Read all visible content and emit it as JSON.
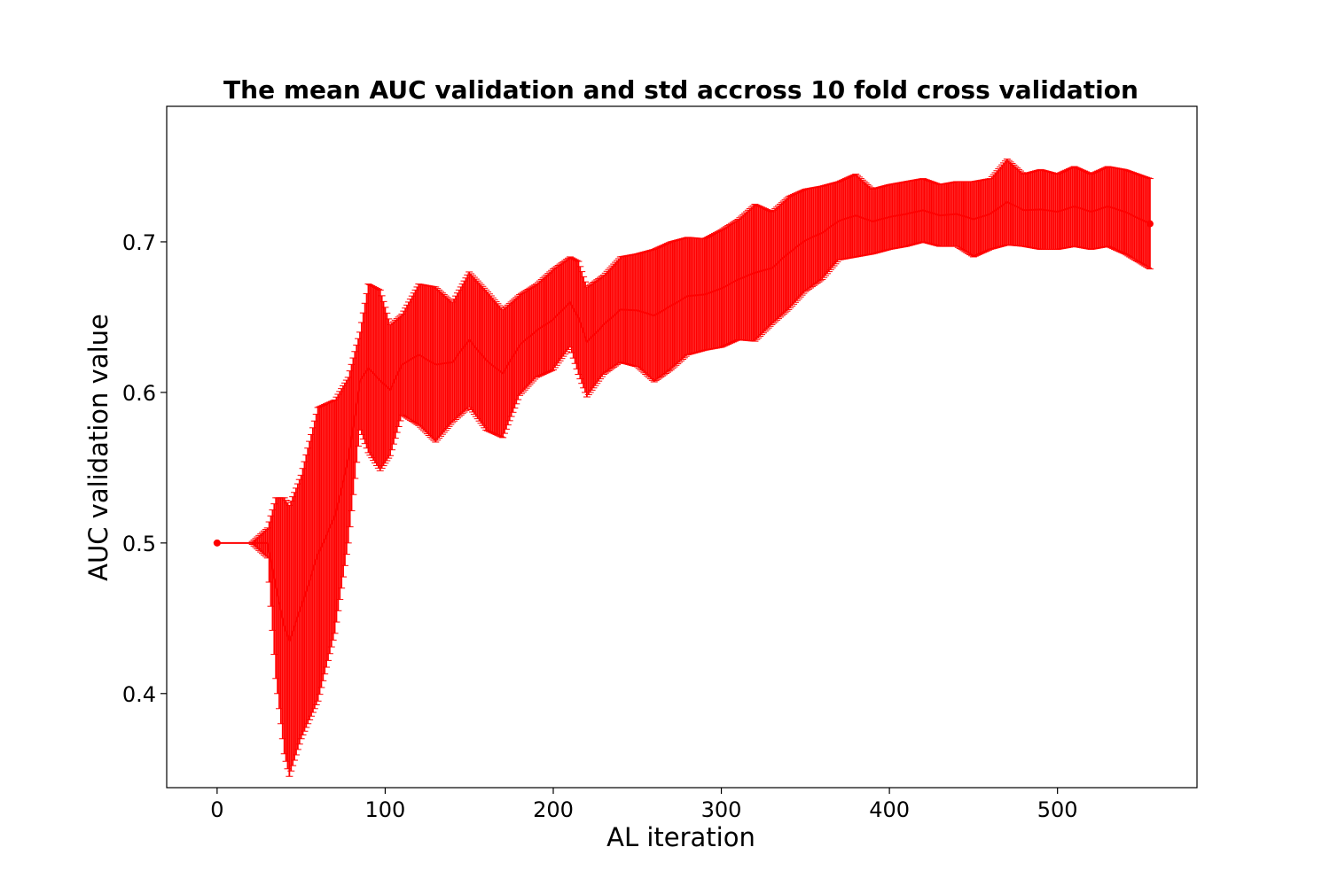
{
  "chart_data": {
    "type": "errorbar",
    "title": "The mean AUC validation and std accross 10 fold cross validation",
    "xlabel": "AL iteration",
    "ylabel": "AUC validation value",
    "xlim": [
      -30,
      583
    ],
    "ylim": [
      0.3375,
      0.79
    ],
    "x_ticks": [
      0,
      100,
      200,
      300,
      400,
      500
    ],
    "y_ticks": [
      0.4,
      0.5,
      0.6,
      0.7
    ],
    "x_tick_labels": [
      "0",
      "100",
      "200",
      "300",
      "400",
      "500"
    ],
    "y_tick_labels": [
      "0.4",
      "0.5",
      "0.6",
      "0.7"
    ],
    "grid": false,
    "legend": "none",
    "color": "#ff0000",
    "series": [
      {
        "x_start": 0,
        "x_step": 1,
        "n_points": 556,
        "keypoints": {
          "x": [
            0,
            20,
            25,
            30,
            35,
            40,
            43,
            50,
            60,
            70,
            78,
            85,
            90,
            97,
            103,
            110,
            120,
            130,
            140,
            150,
            160,
            170,
            180,
            190,
            200,
            210,
            215,
            220,
            230,
            240,
            250,
            260,
            270,
            280,
            290,
            300,
            310,
            320,
            330,
            340,
            350,
            360,
            370,
            380,
            390,
            400,
            410,
            420,
            430,
            440,
            450,
            460,
            470,
            480,
            490,
            500,
            510,
            520,
            530,
            540,
            555
          ],
          "lower": [
            0.5,
            0.5,
            0.495,
            0.49,
            0.41,
            0.36,
            0.345,
            0.37,
            0.395,
            0.44,
            0.5,
            0.575,
            0.56,
            0.548,
            0.558,
            0.585,
            0.578,
            0.567,
            0.58,
            0.59,
            0.575,
            0.57,
            0.598,
            0.61,
            0.615,
            0.63,
            0.612,
            0.597,
            0.612,
            0.62,
            0.617,
            0.607,
            0.615,
            0.625,
            0.628,
            0.63,
            0.635,
            0.634,
            0.645,
            0.655,
            0.667,
            0.675,
            0.688,
            0.69,
            0.692,
            0.695,
            0.697,
            0.7,
            0.697,
            0.697,
            0.69,
            0.695,
            0.698,
            0.697,
            0.695,
            0.695,
            0.697,
            0.695,
            0.697,
            0.692,
            0.682
          ],
          "upper": [
            0.5,
            0.5,
            0.505,
            0.51,
            0.53,
            0.53,
            0.525,
            0.545,
            0.59,
            0.595,
            0.61,
            0.64,
            0.672,
            0.668,
            0.645,
            0.652,
            0.672,
            0.67,
            0.66,
            0.68,
            0.668,
            0.655,
            0.665,
            0.672,
            0.682,
            0.69,
            0.687,
            0.67,
            0.678,
            0.69,
            0.692,
            0.695,
            0.7,
            0.703,
            0.702,
            0.708,
            0.715,
            0.725,
            0.72,
            0.73,
            0.735,
            0.737,
            0.74,
            0.745,
            0.735,
            0.738,
            0.74,
            0.742,
            0.738,
            0.74,
            0.74,
            0.742,
            0.755,
            0.745,
            0.748,
            0.745,
            0.75,
            0.745,
            0.75,
            0.748,
            0.742
          ]
        }
      }
    ]
  }
}
